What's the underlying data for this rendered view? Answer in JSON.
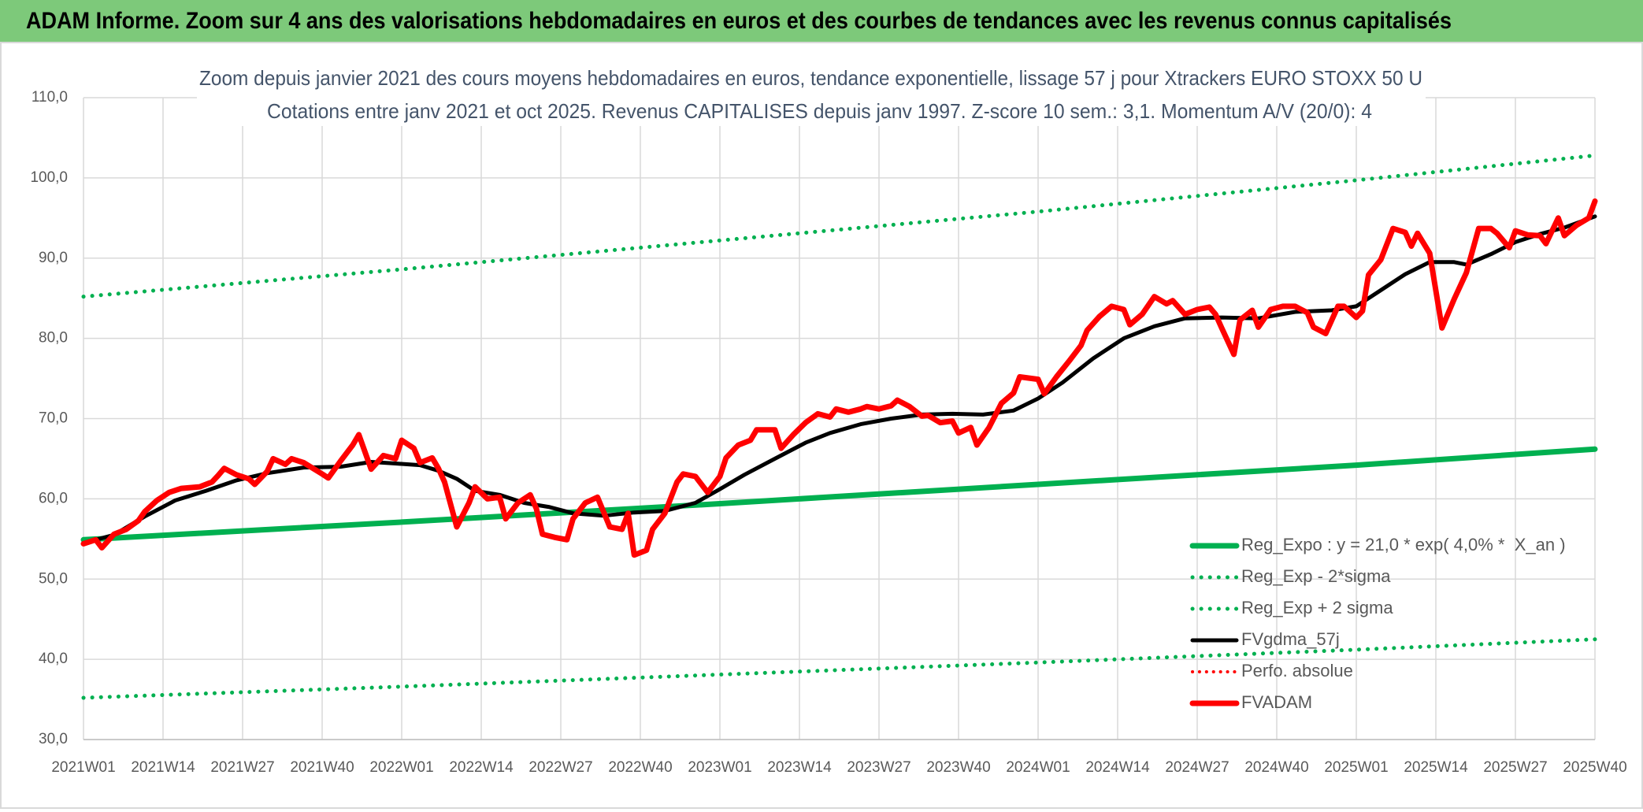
{
  "chart_data": {
    "type": "line",
    "title": "ADAM Informe. Zoom sur 4 ans des valorisations hebdomadaires en euros et des courbes de tendances avec les revenus connus capitalisés",
    "subtitle": [
      "Zoom depuis janvier 2021 des cours moyens hebdomadaires en euros, tendance exponentielle, lissage 57 j pour Xtrackers EURO STOXX 50 U",
      "Cotations entre janv 2021 et oct 2025. Revenus CAPITALISES depuis janv 1997. Z-score 10 sem.: 3,1. Momentum A/V (20/0): 4"
    ],
    "xlim": [
      0,
      247
    ],
    "xticks": [
      {
        "value": 0,
        "label": "2021W01"
      },
      {
        "value": 13,
        "label": "2021W14"
      },
      {
        "value": 26,
        "label": "2021W27"
      },
      {
        "value": 39,
        "label": "2021W40"
      },
      {
        "value": 52,
        "label": "2022W01"
      },
      {
        "value": 65,
        "label": "2022W14"
      },
      {
        "value": 78,
        "label": "2022W27"
      },
      {
        "value": 91,
        "label": "2022W40"
      },
      {
        "value": 104,
        "label": "2023W01"
      },
      {
        "value": 117,
        "label": "2023W14"
      },
      {
        "value": 130,
        "label": "2023W27"
      },
      {
        "value": 143,
        "label": "2023W40"
      },
      {
        "value": 156,
        "label": "2024W01"
      },
      {
        "value": 169,
        "label": "2024W14"
      },
      {
        "value": 182,
        "label": "2024W27"
      },
      {
        "value": 195,
        "label": "2024W40"
      },
      {
        "value": 208,
        "label": "2025W01"
      },
      {
        "value": 221,
        "label": "2025W14"
      },
      {
        "value": 234,
        "label": "2025W27"
      },
      {
        "value": 247,
        "label": "2025W40"
      }
    ],
    "ylim": [
      30,
      110
    ],
    "yticks": [
      {
        "value": 30,
        "label": "30,0"
      },
      {
        "value": 40,
        "label": "40,0"
      },
      {
        "value": 50,
        "label": "50,0"
      },
      {
        "value": 60,
        "label": "60,0"
      },
      {
        "value": 70,
        "label": "70,0"
      },
      {
        "value": 80,
        "label": "80,0"
      },
      {
        "value": 90,
        "label": "90,0"
      },
      {
        "value": 100,
        "label": "100,0"
      },
      {
        "value": 110,
        "label": "110,0"
      }
    ],
    "grid": true,
    "legend": "lower-right",
    "series": [
      {
        "name": "Reg_Expo : y = 21,0 * exp( 4,0% *  X_an )",
        "color": "#00b050",
        "style": "solid",
        "width": 7,
        "x": [
          0,
          52,
          104,
          156,
          208,
          247
        ],
        "values": [
          54.9,
          57.1,
          59.4,
          61.8,
          64.2,
          66.2
        ]
      },
      {
        "name": "Reg_Exp - 2*sigma",
        "color": "#00b050",
        "style": "dotted",
        "width": 5,
        "x": [
          0,
          52,
          104,
          156,
          208,
          247
        ],
        "values": [
          35.2,
          36.6,
          38.1,
          39.6,
          41.2,
          42.5
        ]
      },
      {
        "name": "Reg_Exp + 2 sigma",
        "color": "#00b050",
        "style": "dotted",
        "width": 5,
        "x": [
          0,
          52,
          104,
          156,
          208,
          247
        ],
        "values": [
          85.2,
          88.6,
          92.2,
          95.8,
          99.7,
          102.8
        ]
      },
      {
        "name": "FVgdma_57j",
        "color": "#000000",
        "style": "solid",
        "width": 5,
        "x": [
          0,
          5,
          10,
          15,
          20,
          25,
          30,
          36,
          42,
          47,
          51,
          55,
          58,
          61,
          64,
          68,
          72,
          76,
          80,
          85,
          90,
          95,
          100,
          104,
          108,
          113,
          118,
          122,
          127,
          132,
          137,
          142,
          147,
          152,
          156,
          160,
          165,
          170,
          175,
          180,
          186,
          192,
          198,
          204,
          208,
          212,
          216,
          220,
          224,
          226,
          230,
          234,
          238,
          242,
          247
        ],
        "values": [
          54.5,
          55.5,
          57.8,
          59.8,
          61.0,
          62.3,
          63.2,
          63.9,
          64.0,
          64.6,
          64.4,
          64.2,
          63.5,
          62.5,
          61.0,
          60.5,
          59.5,
          59.0,
          58.2,
          57.9,
          58.3,
          58.5,
          59.5,
          61.2,
          63.0,
          65.0,
          67.0,
          68.2,
          69.3,
          70.0,
          70.5,
          70.6,
          70.5,
          71.0,
          72.5,
          74.5,
          77.5,
          80.0,
          81.5,
          82.5,
          82.6,
          82.5,
          83.3,
          83.5,
          84.0,
          86.0,
          88.0,
          89.5,
          89.5,
          89.2,
          90.5,
          92.0,
          93.0,
          93.8,
          95.2
        ]
      },
      {
        "name": "Perfo. absolue",
        "color": "#ff0000",
        "style": "dotted",
        "width": 4,
        "x": [],
        "values": []
      },
      {
        "name": "FVADAM",
        "color": "#ff0000",
        "style": "solid",
        "width": 7,
        "x": [
          0,
          2,
          3,
          5,
          7,
          9,
          10,
          12,
          14,
          16,
          19,
          21,
          22,
          23,
          25,
          27,
          28,
          30,
          31,
          33,
          34,
          36,
          39,
          40,
          42,
          44,
          45,
          47,
          49,
          51,
          52,
          54,
          55,
          57,
          58,
          59,
          61,
          63,
          64,
          66,
          68,
          69,
          71,
          73,
          74,
          75,
          77,
          79,
          80,
          82,
          84,
          86,
          88,
          89,
          90,
          92,
          93,
          95,
          97,
          98,
          100,
          102,
          104,
          105,
          107,
          109,
          110,
          113,
          114,
          116,
          118,
          120,
          122,
          123,
          125,
          127,
          128,
          130,
          132,
          133,
          135,
          137,
          138,
          140,
          142,
          143,
          145,
          146,
          148,
          150,
          152,
          153,
          156,
          157,
          159,
          161,
          163,
          164,
          166,
          168,
          170,
          171,
          173,
          175,
          177,
          178,
          180,
          182,
          184,
          185,
          186,
          188,
          189,
          191,
          192,
          194,
          196,
          198,
          200,
          201,
          203,
          205,
          206,
          208,
          209,
          210,
          212,
          214,
          216,
          217,
          218,
          220,
          222,
          224,
          226,
          228,
          230,
          231,
          233,
          234,
          236,
          238,
          239,
          241,
          242,
          244,
          246,
          247
        ],
        "values": [
          54.4,
          54.9,
          53.9,
          55.6,
          56.2,
          57.3,
          58.4,
          59.8,
          60.8,
          61.3,
          61.5,
          62.1,
          62.9,
          63.8,
          63.0,
          62.5,
          61.8,
          63.4,
          65.0,
          64.3,
          65.0,
          64.5,
          63.1,
          62.6,
          64.7,
          66.7,
          68.0,
          63.7,
          65.4,
          65.0,
          67.3,
          66.3,
          64.5,
          65.1,
          63.8,
          62.1,
          56.5,
          59.5,
          61.5,
          60.0,
          60.2,
          57.5,
          59.5,
          60.5,
          58.8,
          55.6,
          55.2,
          54.9,
          57.5,
          59.5,
          60.2,
          56.5,
          56.2,
          58.2,
          53.0,
          53.6,
          56.2,
          58.2,
          62.1,
          63.1,
          62.8,
          60.8,
          62.8,
          65.1,
          66.7,
          67.3,
          68.6,
          68.6,
          66.3,
          68.0,
          69.5,
          70.6,
          70.2,
          71.2,
          70.8,
          71.2,
          71.5,
          71.2,
          71.6,
          72.3,
          71.5,
          70.3,
          70.4,
          69.5,
          69.7,
          68.2,
          68.9,
          66.7,
          68.9,
          71.9,
          73.2,
          75.2,
          74.9,
          73.1,
          75.2,
          77.1,
          79.1,
          81.0,
          82.7,
          84.0,
          83.6,
          81.7,
          83.0,
          85.2,
          84.3,
          84.7,
          83.0,
          83.6,
          83.9,
          83.0,
          81.3,
          78.0,
          82.3,
          83.5,
          81.4,
          83.6,
          84.0,
          84.0,
          83.2,
          81.4,
          80.6,
          84.0,
          84.0,
          82.6,
          83.4,
          87.9,
          89.8,
          93.7,
          93.2,
          91.5,
          93.1,
          90.6,
          81.3,
          84.9,
          88.2,
          93.7,
          93.7,
          93.1,
          91.3,
          93.4,
          92.9,
          92.8,
          91.8,
          95.0,
          92.8,
          94.1,
          95.0,
          97.1
        ]
      }
    ]
  }
}
